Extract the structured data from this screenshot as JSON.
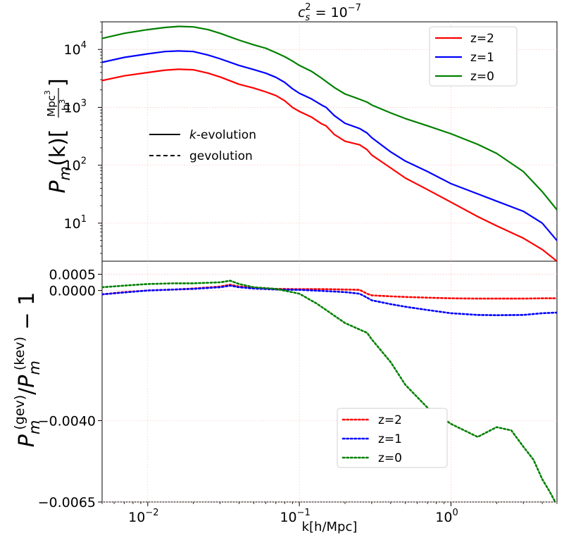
{
  "chart_data": [
    {
      "type": "line",
      "panel": "top",
      "title_math": {
        "base": "c",
        "sub": "s",
        "sup": "2",
        "eq": " = 10",
        "exp": "−7"
      },
      "ylabel_math": {
        "P": "P",
        "sub": "m",
        "paren": "(k)[",
        "num": "Mpc",
        "num_sup": "3",
        "den": "h",
        "den_sup": "3",
        "close": "]"
      },
      "yscale": "log",
      "xscale": "log",
      "xlim": [
        0.005,
        5.0
      ],
      "ylim": [
        2.2,
        30000
      ],
      "yticks": [
        {
          "value": 10,
          "base": "10",
          "exp": "1"
        },
        {
          "value": 100,
          "base": "10",
          "exp": "2"
        },
        {
          "value": 1000,
          "base": "10",
          "exp": "3"
        },
        {
          "value": 10000,
          "base": "10",
          "exp": "4"
        }
      ],
      "grid": true,
      "legend": {
        "placement": "top-right",
        "entries": [
          {
            "label": "z=2",
            "color": "#ff0000"
          },
          {
            "label": "z=1",
            "color": "#0000ff"
          },
          {
            "label": "z=0",
            "color": "#008000"
          }
        ]
      },
      "style_legend": {
        "placement": "center-left",
        "entries": [
          {
            "label_italic": "k",
            "label_rest": "-evolution",
            "style": "solid"
          },
          {
            "label": "gevolution",
            "style": "dashed"
          }
        ]
      },
      "series": [
        {
          "name": "z=2",
          "color": "#ff0000",
          "x": [
            0.005,
            0.007,
            0.01,
            0.013,
            0.016,
            0.02,
            0.025,
            0.03,
            0.04,
            0.05,
            0.06,
            0.07,
            0.08,
            0.09,
            0.1,
            0.12,
            0.14,
            0.15,
            0.17,
            0.2,
            0.25,
            0.28,
            0.3,
            0.4,
            0.5,
            0.7,
            1.0,
            1.5,
            2.0,
            3.0,
            4.0,
            5.0
          ],
          "y": [
            2900,
            3500,
            4000,
            4400,
            4550,
            4450,
            3900,
            3350,
            2500,
            2150,
            1850,
            1600,
            1300,
            1000,
            850,
            680,
            520,
            480,
            340,
            260,
            225,
            185,
            150,
            90,
            60,
            38,
            23,
            13,
            9,
            5.5,
            3.5,
            2.2
          ]
        },
        {
          "name": "z=1",
          "color": "#0000ff",
          "x": [
            0.005,
            0.007,
            0.01,
            0.013,
            0.016,
            0.02,
            0.025,
            0.03,
            0.04,
            0.05,
            0.06,
            0.07,
            0.08,
            0.09,
            0.1,
            0.12,
            0.14,
            0.15,
            0.17,
            0.2,
            0.25,
            0.28,
            0.3,
            0.4,
            0.5,
            0.7,
            1.0,
            1.5,
            2.0,
            3.0,
            4.0,
            5.0
          ],
          "y": [
            6000,
            7300,
            8400,
            9200,
            9400,
            9200,
            8000,
            6900,
            5300,
            4500,
            3900,
            3300,
            2700,
            2100,
            1750,
            1400,
            1100,
            1000,
            720,
            530,
            430,
            360,
            300,
            170,
            118,
            78,
            48,
            32,
            24,
            16,
            10,
            5
          ]
        },
        {
          "name": "z=0",
          "color": "#008000",
          "x": [
            0.005,
            0.007,
            0.01,
            0.013,
            0.016,
            0.02,
            0.025,
            0.03,
            0.04,
            0.05,
            0.06,
            0.07,
            0.08,
            0.09,
            0.1,
            0.12,
            0.14,
            0.15,
            0.17,
            0.2,
            0.25,
            0.28,
            0.3,
            0.4,
            0.5,
            0.7,
            1.0,
            1.5,
            2.0,
            3.0,
            4.0,
            5.0
          ],
          "y": [
            15500,
            19000,
            22000,
            24000,
            25000,
            24500,
            22000,
            19000,
            14500,
            12000,
            10500,
            8800,
            7500,
            6300,
            5300,
            4200,
            3200,
            2800,
            2200,
            1700,
            1380,
            1230,
            1100,
            800,
            640,
            480,
            350,
            230,
            160,
            78,
            35,
            17
          ]
        }
      ]
    },
    {
      "type": "line",
      "panel": "bottom",
      "ylabel_math": {
        "P": "P",
        "sub": "m",
        "sup": "(gev)",
        "slash": "/",
        "P2": "P",
        "sub2": "m",
        "sup2": "(kev)",
        "tail": " − 1"
      },
      "xlabel": "k[h/Mpc]",
      "xscale": "log",
      "xlim": [
        0.005,
        5.0
      ],
      "ylim": [
        -0.0065,
        0.0009
      ],
      "xticks": [
        {
          "value": 0.01,
          "base": "10",
          "exp": "−2"
        },
        {
          "value": 0.1,
          "base": "10",
          "exp": "−1"
        },
        {
          "value": 1.0,
          "base": "10",
          "exp": "0"
        }
      ],
      "yticks": [
        {
          "value": 0.0005,
          "label": "0.0005"
        },
        {
          "value": 0.0,
          "label": "0.0000"
        },
        {
          "value": -0.004,
          "label": "−0.0040"
        },
        {
          "value": -0.0065,
          "label": "−0.0065"
        }
      ],
      "grid": true,
      "legend": {
        "placement": "lower-center",
        "entries": [
          {
            "label": "z=2",
            "color": "#ff0000"
          },
          {
            "label": "z=1",
            "color": "#0000ff"
          },
          {
            "label": "z=0",
            "color": "#008000"
          }
        ]
      },
      "series": [
        {
          "name": "z=2",
          "color": "#ff0000",
          "style": "dotted",
          "x": [
            0.005,
            0.007,
            0.01,
            0.015,
            0.02,
            0.03,
            0.035,
            0.04,
            0.05,
            0.07,
            0.1,
            0.15,
            0.2,
            0.25,
            0.28,
            0.3,
            0.4,
            0.5,
            0.7,
            1.0,
            1.5,
            2.0,
            3.0,
            4.0,
            5.0
          ],
          "y": [
            -0.00012,
            -5e-05,
            0.0,
            3e-05,
            6e-05,
            0.00012,
            0.00018,
            0.00012,
            8e-05,
            5e-05,
            4e-05,
            4e-05,
            3e-05,
            2e-05,
            -0.0001,
            -0.00015,
            -0.00018,
            -0.0002,
            -0.00022,
            -0.00024,
            -0.00025,
            -0.00025,
            -0.00025,
            -0.00024,
            -0.00024
          ]
        },
        {
          "name": "z=1",
          "color": "#0000ff",
          "style": "dotted",
          "x": [
            0.005,
            0.007,
            0.01,
            0.015,
            0.02,
            0.03,
            0.035,
            0.04,
            0.05,
            0.07,
            0.1,
            0.15,
            0.2,
            0.25,
            0.28,
            0.3,
            0.4,
            0.5,
            0.7,
            1.0,
            1.5,
            2.0,
            3.0,
            4.0,
            5.0
          ],
          "y": [
            -0.00012,
            -6e-05,
            0.0,
            3e-05,
            5e-05,
            0.0001,
            0.00015,
            0.0001,
            6e-05,
            3e-05,
            2e-05,
            -2e-05,
            -5e-05,
            -0.0001,
            -0.00022,
            -0.0003,
            -0.00042,
            -0.0005,
            -0.0006,
            -0.0007,
            -0.00075,
            -0.00076,
            -0.00075,
            -0.0007,
            -0.00068
          ]
        },
        {
          "name": "z=0",
          "color": "#008000",
          "style": "dotted",
          "x": [
            0.005,
            0.007,
            0.01,
            0.015,
            0.02,
            0.03,
            0.035,
            0.04,
            0.05,
            0.07,
            0.1,
            0.13,
            0.15,
            0.2,
            0.25,
            0.28,
            0.3,
            0.4,
            0.5,
            0.7,
            1.0,
            1.5,
            2.0,
            2.5,
            3.0,
            3.5,
            4.0,
            4.5,
            5.0
          ],
          "y": [
            0.0001,
            0.00015,
            0.0002,
            0.00022,
            0.00022,
            0.00025,
            0.0003,
            0.0002,
            0.0001,
            5e-05,
            -0.0001,
            -0.0004,
            -0.0006,
            -0.001,
            -0.0012,
            -0.0013,
            -0.0015,
            -0.0022,
            -0.0029,
            -0.0036,
            -0.0041,
            -0.0045,
            -0.0042,
            -0.0043,
            -0.0048,
            -0.0052,
            -0.0058,
            -0.0062,
            -0.0066
          ]
        }
      ]
    }
  ]
}
